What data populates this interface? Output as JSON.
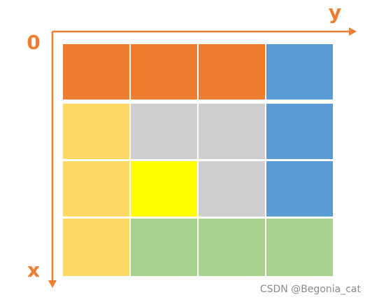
{
  "origin_label": "0",
  "y_axis_label": "y",
  "x_axis_label": "x",
  "watermark": "CSDN @Begonia_cat"
}
